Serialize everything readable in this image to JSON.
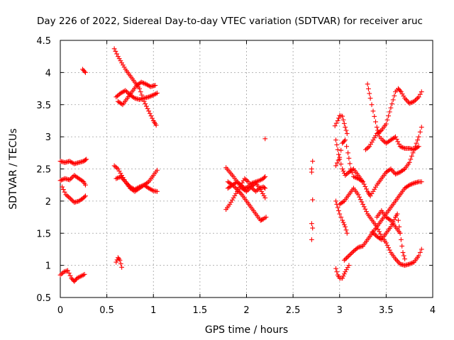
{
  "chart_data": {
    "type": "scatter",
    "title": "Day 226 of 2022, Sidereal Day-to-day VTEC variation (SDTVAR) for receiver aruc",
    "xlabel": "GPS time / hours",
    "ylabel": "SDTVAR / TECUs",
    "xlim": [
      0,
      4
    ],
    "ylim": [
      0.5,
      4.5
    ],
    "xticks": [
      "0",
      "0.5",
      "1",
      "1.5",
      "2",
      "2.5",
      "3",
      "3.5",
      "4"
    ],
    "yticks": [
      "0.5",
      "1",
      "1.5",
      "2",
      "2.5",
      "3",
      "3.5",
      "4",
      "4.5"
    ],
    "xtick_values": [
      0,
      0.5,
      1,
      1.5,
      2,
      2.5,
      3,
      3.5,
      4
    ],
    "ytick_values": [
      0.5,
      1,
      1.5,
      2,
      2.5,
      3,
      3.5,
      4,
      4.5
    ],
    "grid": true,
    "marker": "+",
    "color": "#ff0000",
    "tracks": [
      {
        "name": "a1",
        "points": [
          [
            0,
            2.62
          ],
          [
            0.05,
            2.6
          ],
          [
            0.1,
            2.62
          ],
          [
            0.15,
            2.58
          ],
          [
            0.2,
            2.6
          ],
          [
            0.25,
            2.62
          ],
          [
            0.28,
            2.65
          ]
        ]
      },
      {
        "name": "a2",
        "points": [
          [
            0,
            2.32
          ],
          [
            0.05,
            2.35
          ],
          [
            0.1,
            2.33
          ],
          [
            0.15,
            2.4
          ],
          [
            0.2,
            2.35
          ],
          [
            0.25,
            2.3
          ],
          [
            0.27,
            2.25
          ]
        ]
      },
      {
        "name": "a3",
        "points": [
          [
            0.02,
            2.22
          ],
          [
            0.06,
            2.1
          ],
          [
            0.1,
            2.05
          ],
          [
            0.15,
            1.98
          ],
          [
            0.2,
            2.0
          ],
          [
            0.25,
            2.05
          ],
          [
            0.27,
            2.08
          ]
        ]
      },
      {
        "name": "a4",
        "points": [
          [
            0,
            0.85
          ],
          [
            0.04,
            0.9
          ],
          [
            0.08,
            0.92
          ],
          [
            0.12,
            0.8
          ],
          [
            0.15,
            0.75
          ],
          [
            0.18,
            0.8
          ],
          [
            0.22,
            0.83
          ],
          [
            0.26,
            0.86
          ]
        ]
      },
      {
        "name": "a5",
        "points": [
          [
            0.24,
            4.05
          ],
          [
            0.27,
            4.0
          ]
        ]
      },
      {
        "name": "b1",
        "points": [
          [
            0.58,
            4.37
          ],
          [
            0.62,
            4.25
          ],
          [
            0.66,
            4.15
          ],
          [
            0.7,
            4.05
          ],
          [
            0.75,
            3.95
          ],
          [
            0.8,
            3.85
          ],
          [
            0.85,
            3.75
          ],
          [
            0.9,
            3.55
          ],
          [
            0.95,
            3.4
          ],
          [
            1.0,
            3.25
          ],
          [
            1.03,
            3.18
          ]
        ]
      },
      {
        "name": "b2",
        "points": [
          [
            0.6,
            3.62
          ],
          [
            0.65,
            3.68
          ],
          [
            0.7,
            3.72
          ],
          [
            0.75,
            3.65
          ],
          [
            0.8,
            3.6
          ],
          [
            0.85,
            3.58
          ],
          [
            0.9,
            3.6
          ],
          [
            0.95,
            3.62
          ],
          [
            1.0,
            3.65
          ],
          [
            1.04,
            3.68
          ]
        ]
      },
      {
        "name": "b3",
        "points": [
          [
            0.62,
            3.55
          ],
          [
            0.67,
            3.5
          ],
          [
            0.72,
            3.6
          ],
          [
            0.77,
            3.7
          ],
          [
            0.82,
            3.8
          ],
          [
            0.87,
            3.85
          ],
          [
            0.92,
            3.82
          ],
          [
            0.97,
            3.78
          ],
          [
            1.02,
            3.8
          ]
        ]
      },
      {
        "name": "b4",
        "points": [
          [
            0.58,
            2.55
          ],
          [
            0.62,
            2.5
          ],
          [
            0.66,
            2.4
          ],
          [
            0.7,
            2.3
          ],
          [
            0.75,
            2.2
          ],
          [
            0.8,
            2.15
          ],
          [
            0.85,
            2.2
          ],
          [
            0.9,
            2.25
          ],
          [
            0.95,
            2.3
          ],
          [
            1.0,
            2.4
          ],
          [
            1.04,
            2.48
          ]
        ]
      },
      {
        "name": "b5",
        "points": [
          [
            0.6,
            2.35
          ],
          [
            0.65,
            2.38
          ],
          [
            0.7,
            2.3
          ],
          [
            0.75,
            2.22
          ],
          [
            0.8,
            2.18
          ],
          [
            0.85,
            2.22
          ],
          [
            0.9,
            2.25
          ],
          [
            0.95,
            2.2
          ],
          [
            1.0,
            2.16
          ],
          [
            1.04,
            2.15
          ]
        ]
      },
      {
        "name": "b6",
        "points": [
          [
            0.6,
            1.05
          ],
          [
            0.62,
            1.12
          ],
          [
            0.64,
            1.08
          ],
          [
            0.66,
            0.97
          ]
        ]
      },
      {
        "name": "c1",
        "points": [
          [
            1.78,
            2.52
          ],
          [
            1.82,
            2.45
          ],
          [
            1.86,
            2.38
          ],
          [
            1.9,
            2.3
          ],
          [
            1.94,
            2.25
          ],
          [
            1.98,
            2.2
          ],
          [
            2.02,
            2.22
          ],
          [
            2.06,
            2.28
          ],
          [
            2.1,
            2.3
          ],
          [
            2.14,
            2.32
          ],
          [
            2.18,
            2.35
          ],
          [
            2.2,
            2.38
          ]
        ]
      },
      {
        "name": "c2",
        "points": [
          [
            1.78,
            1.87
          ],
          [
            1.82,
            1.95
          ],
          [
            1.86,
            2.05
          ],
          [
            1.9,
            2.15
          ],
          [
            1.94,
            2.25
          ],
          [
            1.98,
            2.35
          ],
          [
            2.02,
            2.3
          ],
          [
            2.06,
            2.2
          ],
          [
            2.1,
            2.15
          ],
          [
            2.14,
            2.2
          ],
          [
            2.18,
            2.22
          ],
          [
            2.2,
            2.2
          ]
        ]
      },
      {
        "name": "c3",
        "points": [
          [
            1.8,
            2.3
          ],
          [
            1.85,
            2.25
          ],
          [
            1.9,
            2.18
          ],
          [
            1.95,
            2.1
          ],
          [
            2.0,
            2.0
          ],
          [
            2.05,
            1.9
          ],
          [
            2.1,
            1.8
          ],
          [
            2.15,
            1.7
          ],
          [
            2.18,
            1.72
          ],
          [
            2.21,
            1.75
          ]
        ]
      },
      {
        "name": "c4",
        "points": [
          [
            1.8,
            2.2
          ],
          [
            1.85,
            2.25
          ],
          [
            1.9,
            2.3
          ],
          [
            1.95,
            2.2
          ],
          [
            2.0,
            2.15
          ],
          [
            2.05,
            2.22
          ],
          [
            2.1,
            2.28
          ],
          [
            2.15,
            2.18
          ],
          [
            2.2,
            2.05
          ]
        ]
      },
      {
        "name": "c5",
        "points": [
          [
            2.2,
            2.97
          ]
        ]
      },
      {
        "name": "d1",
        "points": [
          [
            2.7,
            2.5
          ],
          [
            2.71,
            2.62
          ],
          [
            2.7,
            2.45
          ],
          [
            2.71,
            2.02
          ],
          [
            2.7,
            1.65
          ],
          [
            2.71,
            1.58
          ],
          [
            2.7,
            1.4
          ]
        ]
      },
      {
        "name": "e1",
        "points": [
          [
            2.95,
            3.17
          ],
          [
            2.98,
            3.25
          ],
          [
            3.0,
            3.33
          ],
          [
            3.03,
            3.32
          ],
          [
            3.06,
            3.15
          ],
          [
            3.08,
            3.05
          ]
        ]
      },
      {
        "name": "e2",
        "points": [
          [
            2.96,
            2.95
          ],
          [
            2.98,
            2.8
          ],
          [
            3.0,
            2.65
          ],
          [
            3.03,
            2.5
          ],
          [
            3.06,
            2.4
          ],
          [
            3.1,
            2.45
          ],
          [
            3.15,
            2.5
          ],
          [
            3.2,
            2.4
          ],
          [
            3.25,
            2.3
          ],
          [
            3.3,
            2.15
          ],
          [
            3.33,
            2.08
          ],
          [
            3.36,
            2.15
          ],
          [
            3.4,
            2.25
          ],
          [
            3.45,
            2.35
          ],
          [
            3.5,
            2.45
          ],
          [
            3.55,
            2.5
          ],
          [
            3.6,
            2.42
          ],
          [
            3.65,
            2.45
          ],
          [
            3.7,
            2.5
          ],
          [
            3.75,
            2.6
          ],
          [
            3.8,
            2.8
          ],
          [
            3.85,
            3.0
          ],
          [
            3.88,
            3.15
          ]
        ]
      },
      {
        "name": "e3",
        "points": [
          [
            2.96,
            2.55
          ],
          [
            3.0,
            2.68
          ],
          [
            3.03,
            2.9
          ],
          [
            3.06,
            2.95
          ],
          [
            3.09,
            2.75
          ],
          [
            3.12,
            2.5
          ],
          [
            3.15,
            2.38
          ],
          [
            3.2,
            2.35
          ],
          [
            3.25,
            2.3
          ]
        ]
      },
      {
        "name": "e4",
        "points": [
          [
            2.96,
            2.0
          ],
          [
            2.98,
            1.9
          ],
          [
            3.0,
            1.8
          ],
          [
            3.03,
            1.7
          ],
          [
            3.06,
            1.6
          ],
          [
            3.08,
            1.5
          ]
        ]
      },
      {
        "name": "e5",
        "points": [
          [
            2.96,
            0.95
          ],
          [
            2.98,
            0.85
          ],
          [
            3.0,
            0.8
          ],
          [
            3.03,
            0.8
          ],
          [
            3.06,
            0.9
          ],
          [
            3.1,
            1.0
          ]
        ]
      },
      {
        "name": "e6",
        "points": [
          [
            3.05,
            1.08
          ],
          [
            3.1,
            1.15
          ],
          [
            3.15,
            1.22
          ],
          [
            3.2,
            1.28
          ],
          [
            3.25,
            1.3
          ],
          [
            3.3,
            1.4
          ],
          [
            3.35,
            1.5
          ],
          [
            3.4,
            1.6
          ],
          [
            3.45,
            1.7
          ],
          [
            3.5,
            1.8
          ],
          [
            3.55,
            1.9
          ],
          [
            3.6,
            2.0
          ],
          [
            3.65,
            2.1
          ],
          [
            3.7,
            2.2
          ],
          [
            3.75,
            2.25
          ],
          [
            3.8,
            2.28
          ],
          [
            3.85,
            2.3
          ],
          [
            3.88,
            2.3
          ]
        ]
      },
      {
        "name": "e7",
        "points": [
          [
            3.0,
            1.95
          ],
          [
            3.05,
            2.0
          ],
          [
            3.1,
            2.1
          ],
          [
            3.15,
            2.2
          ],
          [
            3.2,
            2.1
          ],
          [
            3.25,
            1.95
          ],
          [
            3.3,
            1.8
          ],
          [
            3.35,
            1.7
          ],
          [
            3.4,
            1.6
          ],
          [
            3.45,
            1.45
          ],
          [
            3.5,
            1.35
          ],
          [
            3.55,
            1.2
          ],
          [
            3.6,
            1.1
          ],
          [
            3.65,
            1.02
          ],
          [
            3.7,
            1.0
          ],
          [
            3.75,
            1.02
          ],
          [
            3.8,
            1.05
          ],
          [
            3.85,
            1.15
          ],
          [
            3.88,
            1.25
          ]
        ]
      },
      {
        "name": "e8",
        "points": [
          [
            3.3,
            3.82
          ],
          [
            3.33,
            3.6
          ],
          [
            3.36,
            3.4
          ],
          [
            3.4,
            3.15
          ],
          [
            3.43,
            3.0
          ],
          [
            3.46,
            2.95
          ],
          [
            3.5,
            2.9
          ],
          [
            3.55,
            2.95
          ],
          [
            3.6,
            3.0
          ],
          [
            3.65,
            2.85
          ],
          [
            3.7,
            2.82
          ],
          [
            3.75,
            2.82
          ],
          [
            3.8,
            2.8
          ],
          [
            3.85,
            2.85
          ]
        ]
      },
      {
        "name": "e9",
        "points": [
          [
            3.28,
            2.8
          ],
          [
            3.32,
            2.85
          ],
          [
            3.36,
            2.95
          ],
          [
            3.4,
            3.05
          ],
          [
            3.45,
            3.1
          ],
          [
            3.5,
            3.2
          ],
          [
            3.55,
            3.45
          ],
          [
            3.6,
            3.7
          ],
          [
            3.63,
            3.75
          ],
          [
            3.66,
            3.7
          ],
          [
            3.7,
            3.6
          ],
          [
            3.75,
            3.52
          ],
          [
            3.8,
            3.55
          ],
          [
            3.85,
            3.62
          ],
          [
            3.88,
            3.7
          ]
        ]
      },
      {
        "name": "e10",
        "points": [
          [
            3.35,
            1.52
          ],
          [
            3.4,
            1.45
          ],
          [
            3.45,
            1.4
          ],
          [
            3.5,
            1.5
          ],
          [
            3.55,
            1.6
          ],
          [
            3.6,
            1.75
          ],
          [
            3.62,
            1.8
          ],
          [
            3.64,
            1.6
          ],
          [
            3.66,
            1.4
          ],
          [
            3.68,
            1.2
          ],
          [
            3.7,
            1.1
          ]
        ]
      },
      {
        "name": "e11",
        "points": [
          [
            3.4,
            1.75
          ],
          [
            3.45,
            1.85
          ],
          [
            3.5,
            1.75
          ],
          [
            3.55,
            1.7
          ],
          [
            3.6,
            1.6
          ],
          [
            3.65,
            1.5
          ]
        ]
      }
    ]
  }
}
